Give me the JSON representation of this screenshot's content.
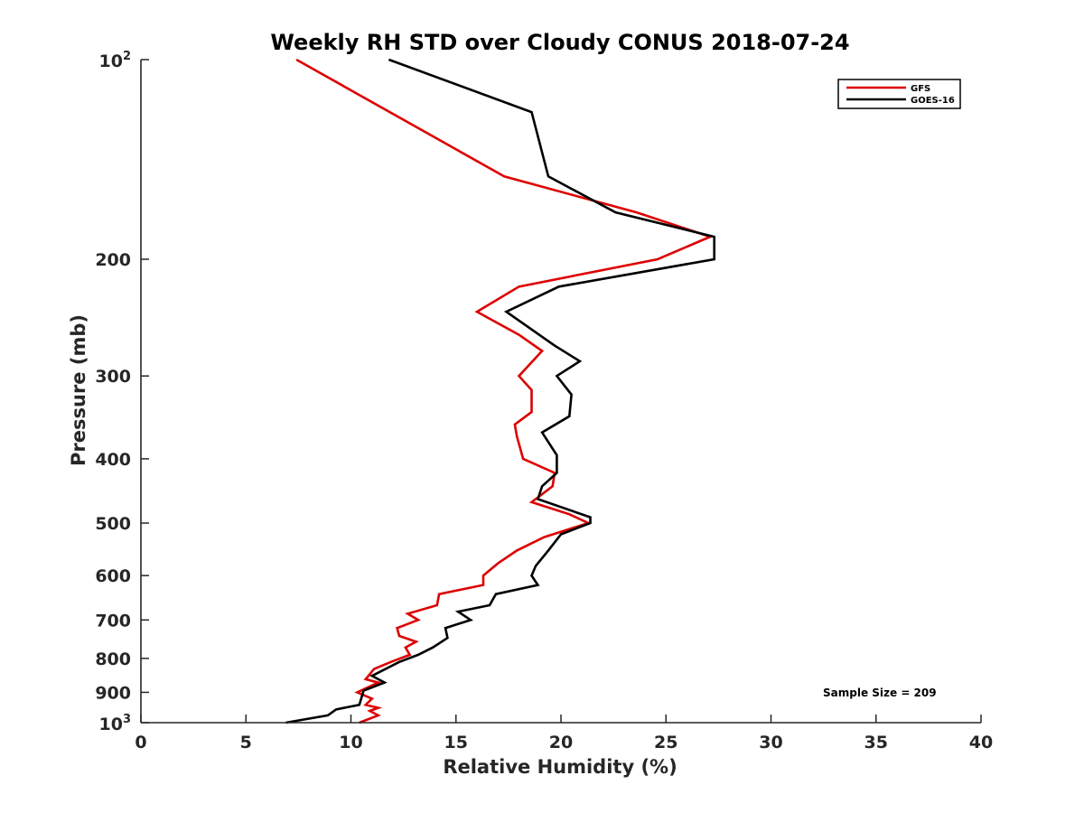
{
  "chart_data": {
    "type": "line",
    "title": "Weekly RH STD over Cloudy CONUS 2018-07-24",
    "xlabel": "Relative Humidity (%)",
    "ylabel": "Pressure (mb)",
    "xlim": [
      0,
      40
    ],
    "ylim": [
      100,
      1000
    ],
    "yscale": "log",
    "y_reversed": true,
    "xticks": [
      0,
      5,
      10,
      15,
      20,
      25,
      30,
      35,
      40
    ],
    "yticks": [
      {
        "value": 100,
        "base": "10",
        "exp": "2"
      },
      {
        "value": 200,
        "label": "200"
      },
      {
        "value": 300,
        "label": "300"
      },
      {
        "value": 400,
        "label": "400"
      },
      {
        "value": 500,
        "label": "500"
      },
      {
        "value": 600,
        "label": "600"
      },
      {
        "value": 700,
        "label": "700"
      },
      {
        "value": 800,
        "label": "800"
      },
      {
        "value": 900,
        "label": "900"
      },
      {
        "value": 1000,
        "base": "10",
        "exp": "3"
      }
    ],
    "legend_position": "top-right",
    "annotation": "Sample Size = 209",
    "series": [
      {
        "name": "GFS",
        "color": "#dd0000",
        "points": [
          [
            7.4,
            100
          ],
          [
            17.3,
            150
          ],
          [
            23.6,
            170
          ],
          [
            27.1,
            185
          ],
          [
            24.6,
            200
          ],
          [
            18.0,
            220
          ],
          [
            16.0,
            240
          ],
          [
            18.0,
            260
          ],
          [
            19.1,
            275
          ],
          [
            18.0,
            300
          ],
          [
            18.6,
            315
          ],
          [
            18.6,
            340
          ],
          [
            17.8,
            355
          ],
          [
            17.9,
            370
          ],
          [
            18.2,
            400
          ],
          [
            19.7,
            420
          ],
          [
            19.6,
            440
          ],
          [
            18.6,
            465
          ],
          [
            20.4,
            485
          ],
          [
            21.3,
            500
          ],
          [
            19.2,
            525
          ],
          [
            17.9,
            550
          ],
          [
            17.0,
            575
          ],
          [
            16.3,
            600
          ],
          [
            16.3,
            620
          ],
          [
            14.2,
            640
          ],
          [
            14.1,
            665
          ],
          [
            12.7,
            685
          ],
          [
            13.2,
            700
          ],
          [
            12.2,
            720
          ],
          [
            12.3,
            740
          ],
          [
            13.1,
            755
          ],
          [
            12.6,
            770
          ],
          [
            12.8,
            790
          ],
          [
            11.9,
            810
          ],
          [
            11.1,
            830
          ],
          [
            10.7,
            860
          ],
          [
            11.3,
            870
          ],
          [
            10.3,
            900
          ],
          [
            11.0,
            920
          ],
          [
            10.7,
            940
          ],
          [
            11.3,
            950
          ],
          [
            10.9,
            960
          ],
          [
            11.3,
            975
          ],
          [
            10.4,
            1000
          ]
        ]
      },
      {
        "name": "GOES-16",
        "color": "#000000",
        "points": [
          [
            11.8,
            100
          ],
          [
            18.6,
            120
          ],
          [
            19.4,
            150
          ],
          [
            22.6,
            170
          ],
          [
            27.3,
            185
          ],
          [
            27.3,
            200
          ],
          [
            19.9,
            220
          ],
          [
            17.4,
            240
          ],
          [
            19.7,
            270
          ],
          [
            20.9,
            285
          ],
          [
            19.8,
            300
          ],
          [
            20.5,
            320
          ],
          [
            20.4,
            345
          ],
          [
            19.1,
            365
          ],
          [
            19.8,
            395
          ],
          [
            19.8,
            420
          ],
          [
            19.1,
            440
          ],
          [
            18.9,
            460
          ],
          [
            21.4,
            490
          ],
          [
            21.4,
            500
          ],
          [
            20.0,
            520
          ],
          [
            19.4,
            550
          ],
          [
            18.8,
            580
          ],
          [
            18.6,
            600
          ],
          [
            18.9,
            620
          ],
          [
            16.9,
            640
          ],
          [
            16.6,
            665
          ],
          [
            15.1,
            680
          ],
          [
            15.7,
            700
          ],
          [
            14.5,
            720
          ],
          [
            14.6,
            745
          ],
          [
            13.9,
            770
          ],
          [
            13.2,
            790
          ],
          [
            12.3,
            810
          ],
          [
            11.0,
            850
          ],
          [
            11.6,
            870
          ],
          [
            10.6,
            895
          ],
          [
            10.4,
            940
          ],
          [
            9.3,
            955
          ],
          [
            8.9,
            975
          ],
          [
            6.9,
            1000
          ]
        ]
      }
    ]
  }
}
